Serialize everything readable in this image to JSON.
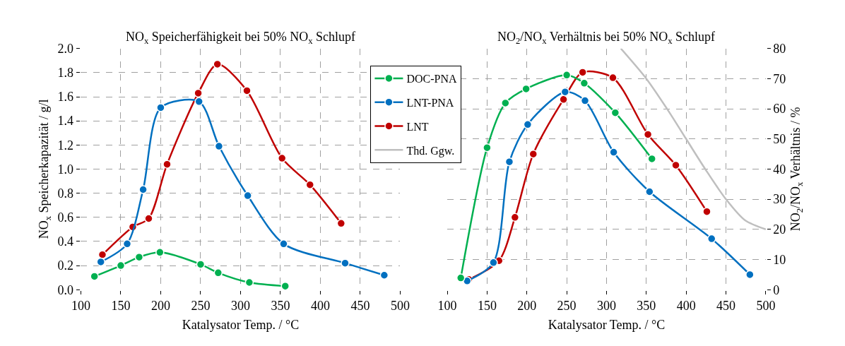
{
  "chart_data": [
    {
      "type": "line",
      "title": "NO$_{x}$ Speicherfähigkeit bei 50% NO$_{x}$ Schlupf",
      "xlabel": "Katalysator Temp. / °C",
      "ylabel": "NO$_{x}$ Speicherkapazität / g/l",
      "xlim": [
        100,
        500
      ],
      "xticks": [
        100,
        150,
        200,
        250,
        300,
        350,
        400,
        450,
        500
      ],
      "ylim": [
        0,
        2
      ],
      "yticks": [
        {
          "value": 0,
          "label": "0.0"
        },
        {
          "value": 0.2,
          "label": "0.2"
        },
        {
          "value": 0.4,
          "label": "0.4"
        },
        {
          "value": 0.6,
          "label": "0.6"
        },
        {
          "value": 0.8,
          "label": "0.8"
        },
        {
          "value": 1.0,
          "label": "1.0"
        },
        {
          "value": 1.2,
          "label": "1.2"
        },
        {
          "value": 1.4,
          "label": "1.4"
        },
        {
          "value": 1.6,
          "label": "1.6"
        },
        {
          "value": 1.8,
          "label": "1.8"
        },
        {
          "value": 2.0,
          "label": "2.0"
        }
      ],
      "grid": true,
      "marker": "circle",
      "legend": "top right",
      "series": [
        {
          "name": "DOC-PNA",
          "color": "#00b050",
          "x": [
            117,
            150,
            173,
            199,
            250,
            272,
            311,
            356
          ],
          "values": [
            0.11,
            0.2,
            0.27,
            0.31,
            0.21,
            0.14,
            0.06,
            0.03
          ]
        },
        {
          "name": "LNT-PNA",
          "color": "#0070c0",
          "x": [
            125,
            158,
            178,
            200,
            248,
            273,
            309,
            354,
            431,
            480
          ],
          "values": [
            0.23,
            0.38,
            0.83,
            1.51,
            1.56,
            1.19,
            0.78,
            0.38,
            0.22,
            0.12
          ]
        },
        {
          "name": "LNT",
          "color": "#c00000",
          "x": [
            127,
            165,
            185,
            208,
            247,
            271,
            308,
            352,
            387,
            426
          ],
          "values": [
            0.29,
            0.52,
            0.59,
            1.04,
            1.63,
            1.87,
            1.65,
            1.09,
            0.87,
            0.55
          ]
        }
      ]
    },
    {
      "type": "line",
      "title": "NO$_{2}$/NO$_{x}$ Verhältnis bei 50% NO$_{x}$ Schlupf",
      "xlabel": "Katalysator Temp. / °C",
      "ylabel": "NO$_{2}$/NO$_{x}$ Verhältnis / %",
      "xlim": [
        100,
        500
      ],
      "xticks": [
        100,
        150,
        200,
        250,
        300,
        350,
        400,
        450,
        500
      ],
      "ylim": [
        0,
        80
      ],
      "yticks": [
        0,
        10,
        20,
        30,
        40,
        50,
        60,
        70,
        80
      ],
      "grid": true,
      "marker": "circle",
      "series": [
        {
          "name": "DOC-PNA",
          "color": "#00b050",
          "x": [
            117,
            150,
            173,
            199,
            250,
            272,
            311,
            357
          ],
          "values": [
            3.9,
            47.1,
            61.9,
            66.6,
            71.2,
            68.5,
            58.7,
            43.4
          ]
        },
        {
          "name": "LNT-PNA",
          "color": "#0070c0",
          "x": [
            125,
            158,
            178,
            201,
            248,
            273,
            309,
            354,
            432,
            480
          ],
          "values": [
            2.9,
            9.0,
            42.4,
            54.8,
            65.6,
            62.7,
            45.6,
            32.5,
            16.9,
            5.0
          ]
        },
        {
          "name": "LNT",
          "color": "#c00000",
          "x": [
            127,
            165,
            185,
            208,
            246,
            270,
            308,
            352,
            387,
            426
          ],
          "values": [
            3.4,
            9.6,
            24.0,
            45.0,
            63.1,
            72.1,
            70.3,
            51.5,
            41.3,
            25.9
          ]
        },
        {
          "name": "Thd. Ggw.",
          "color": "#bfbfbf",
          "marker": "none",
          "x": [
            318,
            350,
            376,
            400,
            424,
            450,
            474,
            500
          ],
          "values": [
            80,
            70,
            60,
            50,
            40,
            30,
            23,
            20
          ]
        }
      ]
    }
  ]
}
